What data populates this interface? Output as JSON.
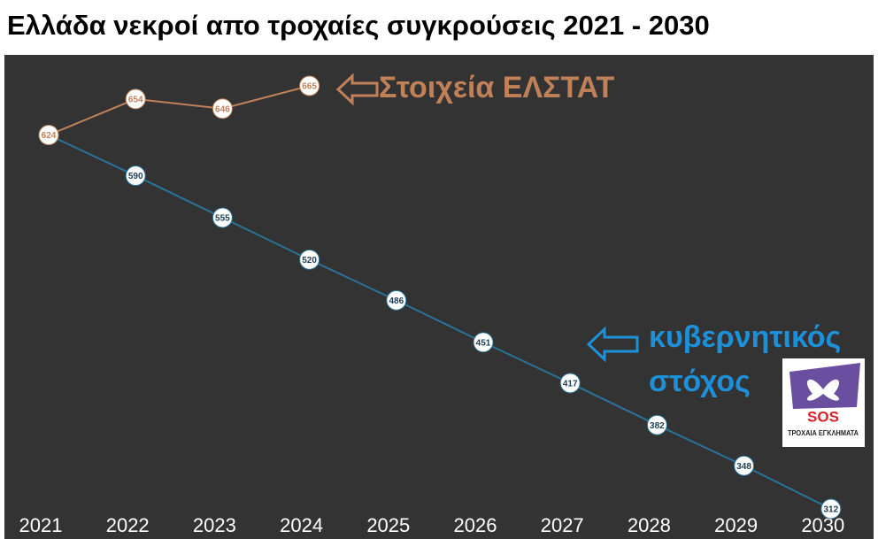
{
  "chart_data": {
    "type": "line",
    "title": "Ελλάδα νεκροί απο τροχαίες συγκρούσεις 2021 - 2030",
    "categories": [
      "2021",
      "2022",
      "2023",
      "2024",
      "2025",
      "2026",
      "2027",
      "2028",
      "2029",
      "2030"
    ],
    "series": [
      {
        "name": "κυβερνητικός στόχος",
        "color": "#2a7398",
        "values": [
          624,
          590,
          555,
          520,
          486,
          451,
          417,
          382,
          348,
          312
        ]
      },
      {
        "name": "Στοιχεία ΕΛΣΤΑΤ",
        "color": "#c08158",
        "values": [
          624,
          654,
          646,
          665,
          null,
          null,
          null,
          null,
          null,
          null
        ]
      }
    ]
  },
  "logo": {
    "title": "SOS",
    "subtitle": "ΤΡΟΧΑΙΑ ΕΓΚΛΗΜΑΤΑ"
  }
}
